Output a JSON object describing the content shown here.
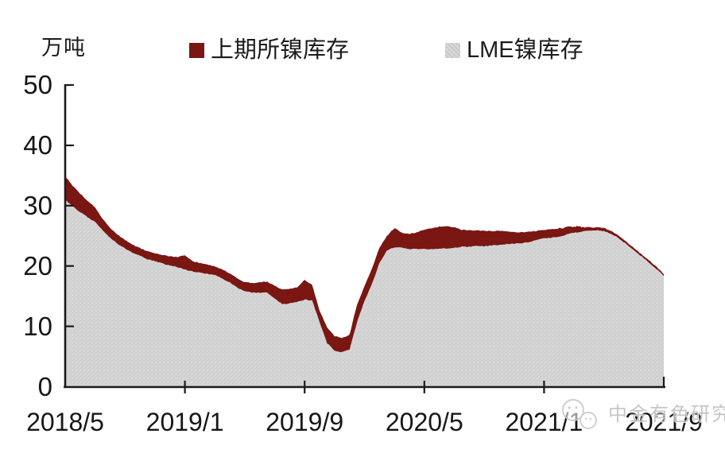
{
  "unit_label": "万吨",
  "legend": {
    "items": [
      {
        "label": "上期所镍库存",
        "color": "#7a1712",
        "swatch": "solid-dark-red-square"
      },
      {
        "label": "LME镍库存",
        "color": "#d3d3d3",
        "swatch": "hatched-gray-square"
      }
    ]
  },
  "watermark": {
    "text": "中金有色研究",
    "icon": "wechat-bubbles-logo"
  },
  "colors": {
    "shfe_area": "#7a1712",
    "lme_area": "#d4d4d4",
    "lme_area_texture": "#c8c8c8",
    "axis": "#1a1a1a",
    "text": "#171717",
    "watermark_gray": "#bfbfbf",
    "background": "#ffffff"
  },
  "chart_data": {
    "type": "area",
    "stacked": true,
    "title": "",
    "xlabel": "",
    "ylabel": "万吨",
    "ylim": [
      0,
      50
    ],
    "y_ticks": [
      0,
      10,
      20,
      30,
      40,
      50
    ],
    "x_tick_labels": [
      "2018/5",
      "2019/1",
      "2019/9",
      "2020/5",
      "2021/1",
      "2021/9"
    ],
    "x_tick_month_index": [
      0,
      8,
      16,
      24,
      32,
      40
    ],
    "x_start": "2018/5",
    "x_end": "2021/9",
    "x_step_months": 0.5,
    "grid": false,
    "legend_position": "top",
    "series": [
      {
        "name": "LME镍库存",
        "role": "bottom-layer",
        "color": "#d4d4d4",
        "values": [
          31.0,
          29.9,
          28.9,
          28.1,
          27.3,
          25.9,
          24.7,
          23.7,
          22.9,
          22.2,
          21.7,
          21.1,
          20.8,
          20.4,
          20.1,
          19.8,
          19.4,
          19.1,
          18.9,
          18.7,
          18.5,
          17.9,
          17.3,
          16.4,
          15.8,
          15.6,
          15.6,
          15.6,
          14.6,
          13.7,
          13.8,
          14.1,
          14.4,
          14.3,
          10.7,
          7.2,
          6.0,
          5.7,
          6.1,
          10.7,
          14.2,
          17.0,
          20.5,
          22.6,
          23.1,
          23.0,
          22.8,
          22.8,
          22.8,
          22.8,
          22.9,
          22.9,
          23.0,
          23.2,
          23.2,
          23.3,
          23.3,
          23.4,
          23.5,
          23.6,
          23.7,
          23.8,
          24.0,
          24.3,
          24.6,
          24.7,
          24.8,
          25.2,
          25.5,
          25.7,
          25.9,
          25.9,
          25.8,
          25.3,
          24.6,
          23.6,
          22.6,
          21.6,
          20.6,
          19.5,
          18.4
        ]
      },
      {
        "name": "上期所镍库存",
        "role": "top-layer",
        "color": "#7a1712",
        "values": [
          3.9,
          3.4,
          3.1,
          2.7,
          2.4,
          1.9,
          1.6,
          1.5,
          1.4,
          1.3,
          1.3,
          1.3,
          1.3,
          1.4,
          1.5,
          1.7,
          2.4,
          1.7,
          1.6,
          1.5,
          1.4,
          1.5,
          1.5,
          1.6,
          1.5,
          1.6,
          1.7,
          1.8,
          2.1,
          2.4,
          2.4,
          2.3,
          3.3,
          2.6,
          1.9,
          2.6,
          2.4,
          2.4,
          2.5,
          2.9,
          2.4,
          2.6,
          2.5,
          2.4,
          3.2,
          2.5,
          2.5,
          2.8,
          3.2,
          3.5,
          3.6,
          3.7,
          3.4,
          2.8,
          2.7,
          2.6,
          2.5,
          2.4,
          2.3,
          2.2,
          1.9,
          1.8,
          1.7,
          1.5,
          1.4,
          1.4,
          1.4,
          1.3,
          1.1,
          0.8,
          0.5,
          0.5,
          0.5,
          0.5,
          0.4,
          0.4,
          0.4,
          0.4,
          0.4,
          0.4,
          0.3
        ]
      }
    ]
  }
}
